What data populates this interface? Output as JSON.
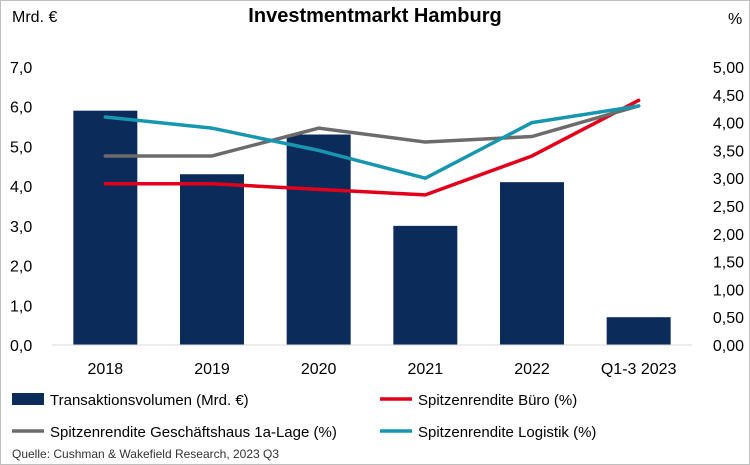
{
  "chart_data": {
    "type": "bar",
    "title": "Investmentmarkt Hamburg",
    "left_axis_label": "Mrd. €",
    "right_axis_label": "%",
    "categories": [
      "2018",
      "2019",
      "2020",
      "2021",
      "2022",
      "Q1-3 2023"
    ],
    "left_ticks": [
      "0,0",
      "1,0",
      "2,0",
      "3,0",
      "4,0",
      "5,0",
      "6,0",
      "7,0"
    ],
    "right_ticks": [
      "0,00",
      "0,50",
      "1,00",
      "1,50",
      "2,00",
      "2,50",
      "3,00",
      "3,50",
      "4,00",
      "4,50",
      "5,00"
    ],
    "ylim_left": [
      0,
      7
    ],
    "ylim_right": [
      0,
      5
    ],
    "series": [
      {
        "name": "Transaktionsvolumen (Mrd. €)",
        "kind": "bar",
        "axis": "left",
        "color": "#0b2c5a",
        "values": [
          5.9,
          4.3,
          5.3,
          3.0,
          4.1,
          0.7
        ]
      },
      {
        "name": "Spitzenrendite Büro (%)",
        "kind": "line",
        "axis": "right",
        "color": "#e3001b",
        "values": [
          2.9,
          2.9,
          2.8,
          2.7,
          3.4,
          4.4
        ]
      },
      {
        "name": "Spitzenrendite Geschäftshaus 1a-Lage (%)",
        "kind": "line",
        "axis": "right",
        "color": "#6b6b6b",
        "values": [
          3.4,
          3.4,
          3.9,
          3.65,
          3.75,
          4.3
        ]
      },
      {
        "name": "Spitzenrendite Logistik (%)",
        "kind": "line",
        "axis": "right",
        "color": "#1796b0",
        "values": [
          4.1,
          3.9,
          3.5,
          3.0,
          4.0,
          4.3
        ]
      }
    ],
    "source": "Quelle: Cushman & Wakefield Research, 2023 Q3",
    "grid": false,
    "legend": "bottom"
  }
}
